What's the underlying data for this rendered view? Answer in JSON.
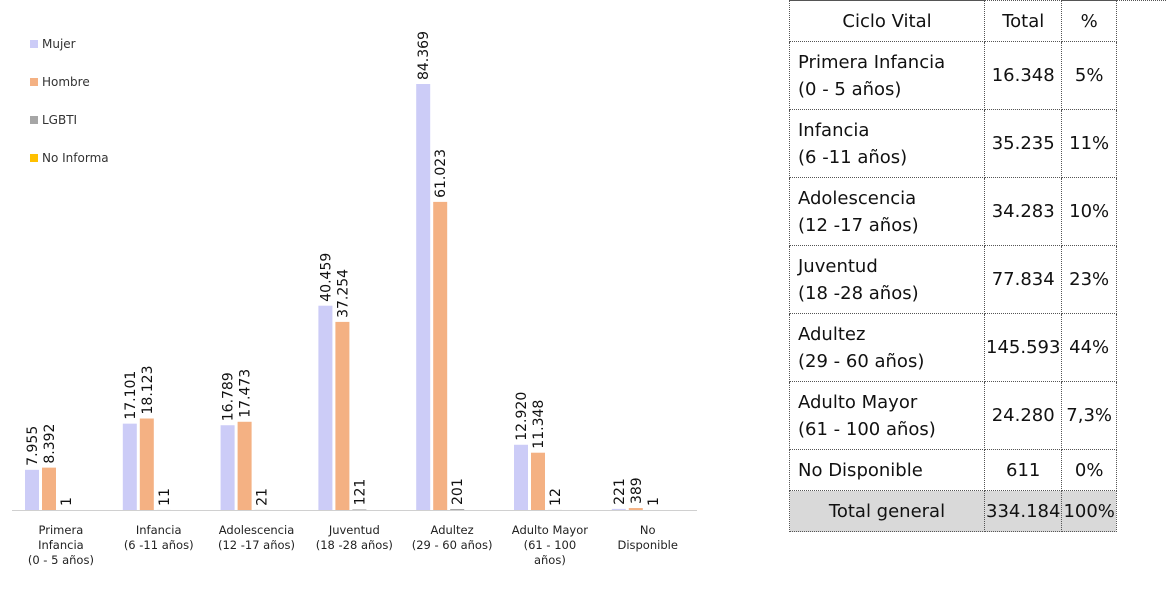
{
  "chart_data": {
    "type": "bar",
    "categories": [
      [
        "Primera",
        "Infancia",
        "(0 - 5 años)"
      ],
      [
        "Infancia",
        "(6 -11 años)"
      ],
      [
        "Adolescencia",
        "(12 -17 años)"
      ],
      [
        "Juventud",
        "(18 -28 años)"
      ],
      [
        "Adultez",
        "(29 - 60 años)"
      ],
      [
        "Adulto Mayor",
        "(61 - 100",
        "años)"
      ],
      [
        "No",
        "Disponible"
      ]
    ],
    "series": [
      {
        "name": "Mujer",
        "color": "#ccccf7",
        "values": [
          7955,
          17101,
          16789,
          40459,
          84369,
          12920,
          221
        ],
        "labels": [
          "7.955",
          "17.101",
          "16.789",
          "40.459",
          "84.369",
          "12.920",
          "221"
        ]
      },
      {
        "name": "Hombre",
        "color": "#f4b183",
        "values": [
          8392,
          18123,
          17473,
          37254,
          61023,
          11348,
          389
        ],
        "labels": [
          "8.392",
          "18.123",
          "17.473",
          "37.254",
          "61.023",
          "11.348",
          "389"
        ]
      },
      {
        "name": "LGBTI",
        "color": "#a6a6a6",
        "values": [
          1,
          11,
          21,
          121,
          201,
          12,
          1
        ],
        "labels": [
          "1",
          "11",
          "21",
          "121",
          "201",
          "12",
          "1"
        ]
      },
      {
        "name": "No Informa",
        "color": "#ffc000",
        "values": [
          0,
          0,
          0,
          0,
          0,
          0,
          0
        ],
        "labels": [
          "",
          "",
          "",
          "",
          "",
          "",
          ""
        ]
      }
    ],
    "legend_position": "top-left",
    "grid": false,
    "ylim": [
      0,
      90000
    ]
  },
  "table": {
    "headers": [
      "Ciclo Vital",
      "Total",
      "%"
    ],
    "rows": [
      {
        "name1": "Primera Infancia",
        "name2": "(0 - 5 años)",
        "total": "16.348",
        "pct": "5%"
      },
      {
        "name1": "Infancia",
        "name2": "(6 -11 años)",
        "total": "35.235",
        "pct": "11%"
      },
      {
        "name1": "Adolescencia",
        "name2": "(12 -17 años)",
        "total": "34.283",
        "pct": "10%"
      },
      {
        "name1": "Juventud",
        "name2": "(18 -28 años)",
        "total": "77.834",
        "pct": "23%"
      },
      {
        "name1": "Adultez",
        "name2": "(29 - 60 años)",
        "total": "145.593",
        "pct": "44%"
      },
      {
        "name1": "Adulto Mayor",
        "name2": "(61 - 100 años)",
        "total": "24.280",
        "pct": "7,3%"
      }
    ],
    "no_disponible": {
      "name": "No Disponible",
      "total": "611",
      "pct": "0%"
    },
    "total": {
      "name": "Total general",
      "total": "334.184",
      "pct": "100%"
    }
  }
}
